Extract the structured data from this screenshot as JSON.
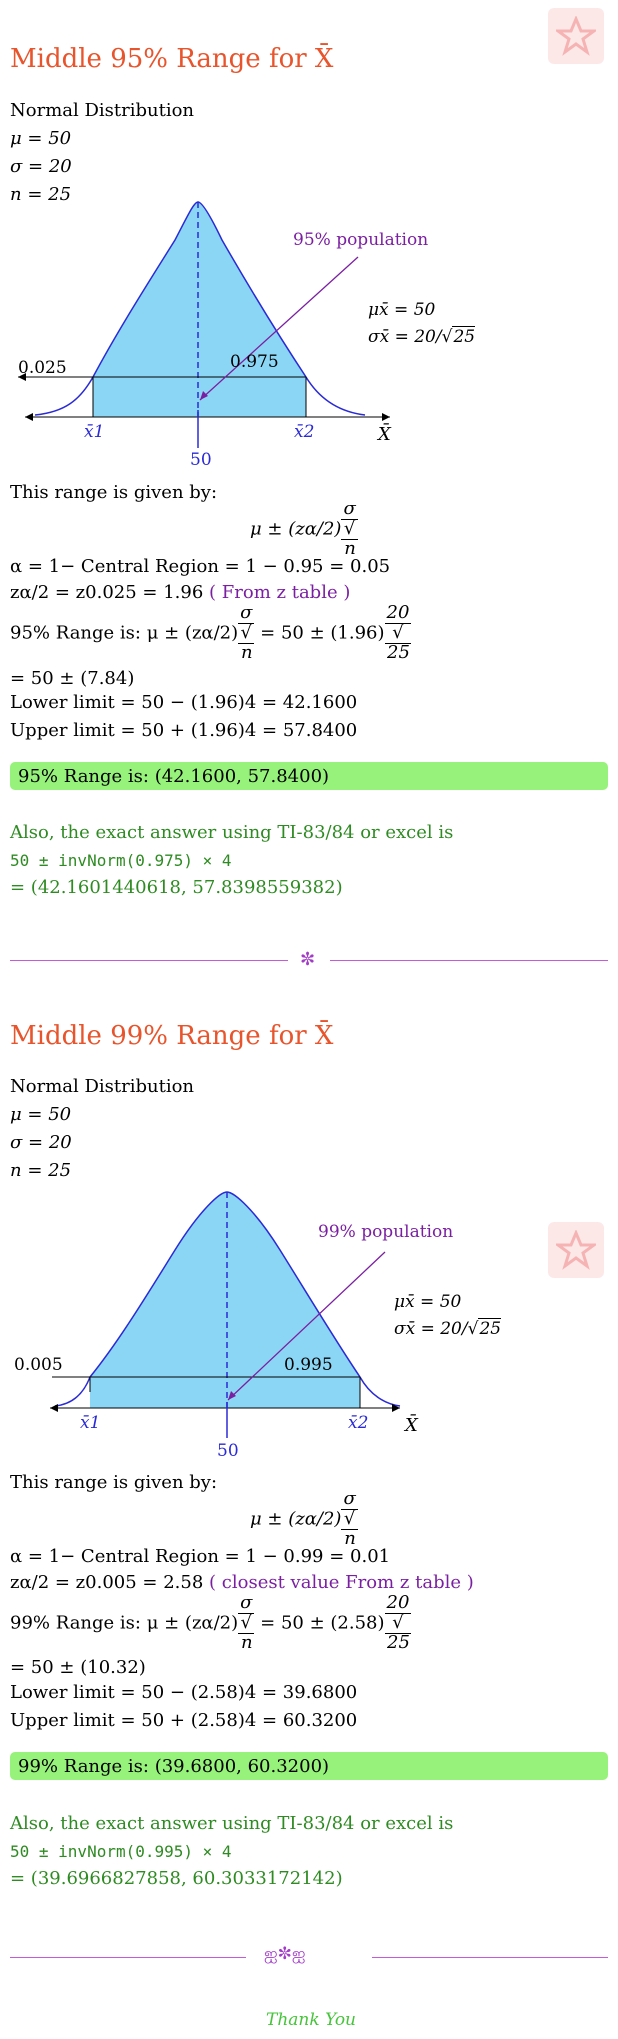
{
  "colors": {
    "heading": "#e8542b",
    "curve_fill": "#8cd6f5",
    "curve_stroke": "#2a2ad6",
    "answer_bg": "#96f27a",
    "green_text": "#2e8b22",
    "purple": "#7b1fa2"
  },
  "logo_icon": "star-logo-icon",
  "section1": {
    "title": "Middle 95% Range for X̄",
    "dist": "Normal Distribution",
    "mu": "μ = 50",
    "sigma": "σ = 20",
    "n": "n = 25",
    "chart": {
      "pop_label": "95% population",
      "mu_xbar": "μx̄ = 50",
      "sigma_xbar_prefix": "σx̄ = 20/",
      "sigma_xbar_sqrt": "25",
      "left_tail": "0.025",
      "right_area": "0.975",
      "x1": "x̄1",
      "x2": "x̄2",
      "center": "50",
      "axis": "X̄"
    },
    "given_by": "This range is given by:",
    "formula": "μ ± (zα/2)",
    "alpha": "α = 1− Central Region = 1 − 0.95 = 0.05",
    "z_line": "zα/2 = z0.025 = 1.96",
    "z_note": "( From z table )",
    "range_prefix": "95% Range is:  μ ± (zα/2)",
    "range_eq": "= 50 ± (1.96)",
    "range_frac_num": "20",
    "range_frac_den": "25",
    "equals": "= 50 ± (7.84)",
    "lower": "Lower limit = 50 − (1.96)4 = 42.1600",
    "upper": "Upper limit = 50 + (1.96)4 = 57.8400",
    "answer": "95% Range is:  (42.1600, 57.8400)",
    "also": "Also, the exact answer using TI-83/84 or excel is",
    "ti_expr": "50 ± invNorm(0.975) × 4",
    "ti_result": "= (42.1601440618, 57.8398559382)"
  },
  "section2": {
    "title": "Middle 99% Range for X̄",
    "dist": "Normal Distribution",
    "mu": "μ = 50",
    "sigma": "σ = 20",
    "n": "n = 25",
    "chart": {
      "pop_label": "99% population",
      "mu_xbar": "μx̄ = 50",
      "sigma_xbar_prefix": "σx̄ = 20/",
      "sigma_xbar_sqrt": "25",
      "left_tail": "0.005",
      "right_area": "0.995",
      "x1": "x̄1",
      "x2": "x̄2",
      "center": "50",
      "axis": "X̄"
    },
    "given_by": "This range is given by:",
    "formula": "μ ± (zα/2)",
    "alpha": "α = 1− Central Region = 1 − 0.99 = 0.01",
    "z_line": "zα/2 = z0.005 = 2.58",
    "z_note": "( closest value From z table )",
    "range_prefix": "99% Range is:  μ ± (zα/2)",
    "range_eq": "= 50 ± (2.58)",
    "range_frac_num": "20",
    "range_frac_den": "25",
    "equals": "= 50 ± (10.32)",
    "lower": "Lower limit = 50 − (2.58)4 = 39.6800",
    "upper": "Upper limit = 50 + (2.58)4 = 60.3200",
    "answer": "99% Range is:  (39.6800, 60.3200)",
    "also": "Also, the exact answer using TI-83/84 or excel is",
    "ti_expr": "50 ± invNorm(0.995) × 4",
    "ti_result": "= (39.6966827858, 60.3033172142)"
  },
  "frac_sigma": "σ",
  "frac_n": "n",
  "divider1_icon": "fleuron-icon",
  "divider2_icon": "ornament-icon",
  "divider1_glyph": "✼",
  "divider2_glyph": "ஐ✼ஐ",
  "closing": "Thank You"
}
